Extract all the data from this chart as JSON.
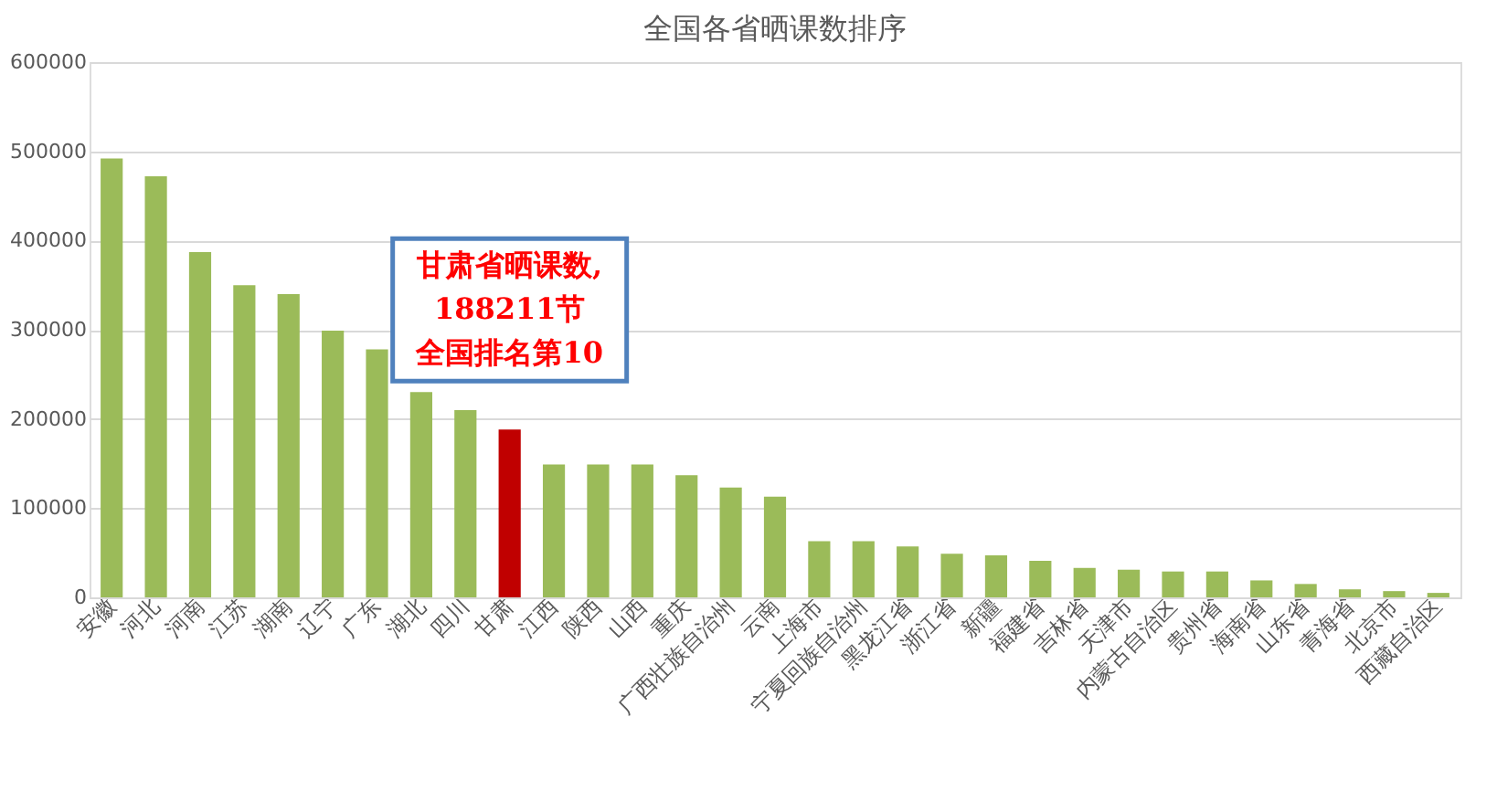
{
  "chart_data": {
    "type": "bar",
    "title": "全国各省晒课数排序",
    "categories": [
      "安徽",
      "河北",
      "河南",
      "江苏",
      "湖南",
      "辽宁",
      "广东",
      "湖北",
      "四川",
      "甘肃",
      "江西",
      "陕西",
      "山西",
      "重庆",
      "广西壮族自治州",
      "云南",
      "上海市",
      "宁夏回族自治州",
      "黑龙江省",
      "浙江省",
      "新疆",
      "福建省",
      "吉林省",
      "天津市",
      "内蒙古自治区",
      "贵州省",
      "海南省",
      "山东省",
      "青海省",
      "北京市",
      "西藏自治区"
    ],
    "values": [
      492000,
      472000,
      387000,
      350000,
      340000,
      299000,
      278000,
      230000,
      210000,
      188211,
      149000,
      149000,
      149000,
      137000,
      123000,
      113000,
      63000,
      63000,
      57000,
      49000,
      47000,
      41000,
      33000,
      31000,
      29000,
      29000,
      19000,
      15000,
      9000,
      7000,
      5000
    ],
    "colors": [
      "#9bbb59",
      "#9bbb59",
      "#9bbb59",
      "#9bbb59",
      "#9bbb59",
      "#9bbb59",
      "#9bbb59",
      "#9bbb59",
      "#9bbb59",
      "#c00000",
      "#9bbb59",
      "#9bbb59",
      "#9bbb59",
      "#9bbb59",
      "#9bbb59",
      "#9bbb59",
      "#9bbb59",
      "#9bbb59",
      "#9bbb59",
      "#9bbb59",
      "#9bbb59",
      "#9bbb59",
      "#9bbb59",
      "#9bbb59",
      "#9bbb59",
      "#9bbb59",
      "#9bbb59",
      "#9bbb59",
      "#9bbb59",
      "#9bbb59",
      "#9bbb59"
    ],
    "ylim": [
      0,
      600000
    ],
    "yticks": [
      0,
      100000,
      200000,
      300000,
      400000,
      500000,
      600000
    ],
    "grid": "y",
    "annotations": [
      "甘肃省晒课数,",
      "188211节",
      "全国排名第10"
    ]
  }
}
